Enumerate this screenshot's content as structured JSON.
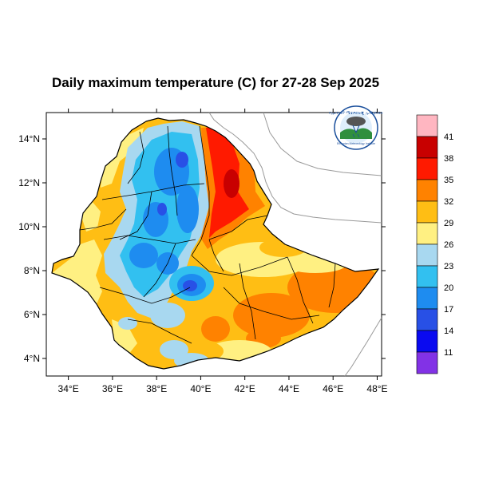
{
  "title": "Daily maximum temperature (C) for 27-28 Sep 2025",
  "map": {
    "lon_ticks": [
      "34°E",
      "36°E",
      "38°E",
      "40°E",
      "42°E",
      "44°E",
      "46°E",
      "48°E"
    ],
    "lat_ticks": [
      "14°N",
      "12°N",
      "10°N",
      "8°N",
      "6°N",
      "4°N"
    ],
    "lon_range": [
      33,
      48.2
    ],
    "lat_range": [
      3.2,
      15.2
    ]
  },
  "colorbar": {
    "labels": [
      "41",
      "38",
      "35",
      "32",
      "29",
      "26",
      "23",
      "20",
      "17",
      "14",
      "11"
    ],
    "colors": [
      "#ffb6c1",
      "#c80000",
      "#ff1a00",
      "#ff8200",
      "#ffbe14",
      "#fff082",
      "#a8d8f0",
      "#32c0f0",
      "#1e8cf0",
      "#2850e6",
      "#0a0af0",
      "#8232e6"
    ]
  },
  "colors": {
    "border": "#000000",
    "neighbor": "#999999",
    "outside": "#ffffff"
  },
  "logo": {
    "name": "ethiopian-meteorology-institute-logo",
    "script_text": "የኢትዮጵያ ሜቴዎሮሎጂ ኢንስቲትዩት",
    "english_text": "Ethiopian Meteorology Institute"
  }
}
